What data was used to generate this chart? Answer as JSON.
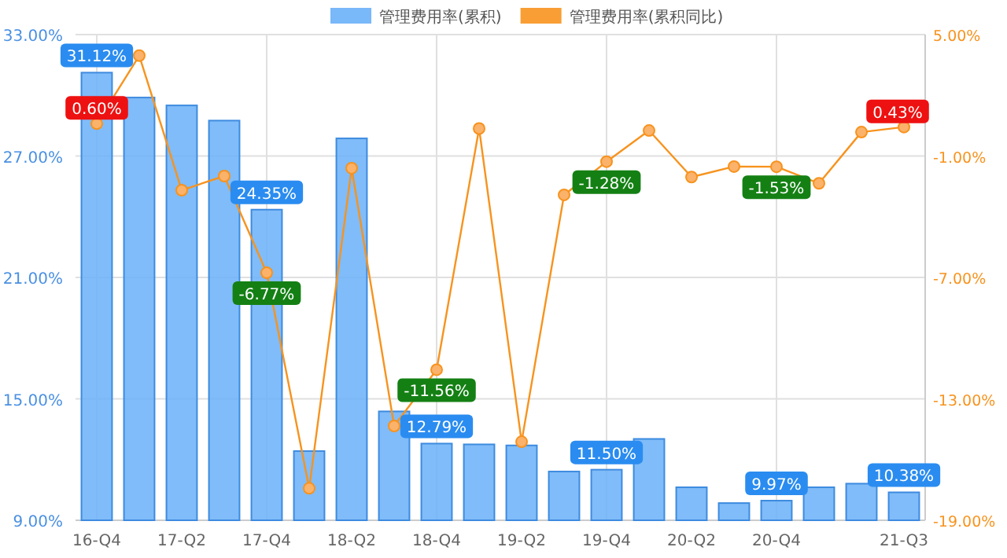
{
  "chart_data": {
    "type": "bar",
    "categories": [
      "16-Q4",
      null,
      "17-Q2",
      null,
      "17-Q4",
      null,
      "18-Q2",
      null,
      "18-Q4",
      null,
      "19-Q2",
      null,
      "19-Q4",
      null,
      "20-Q2",
      null,
      "20-Q4",
      null,
      null,
      "21-Q3"
    ],
    "series": [
      {
        "name": "管理费用率(累积)",
        "color": "#6ab0f8",
        "values": [
          31.12,
          29.89,
          29.5,
          28.75,
          24.35,
          12.42,
          27.87,
          14.38,
          12.79,
          12.75,
          12.7,
          11.41,
          11.5,
          13.02,
          10.63,
          9.85,
          9.97,
          10.63,
          10.81,
          10.38
        ],
        "value_labels": [
          "31.12%",
          null,
          null,
          null,
          "24.35%",
          null,
          null,
          null,
          "12.79%",
          null,
          null,
          null,
          "11.50%",
          null,
          null,
          null,
          "9.97%",
          null,
          null,
          "10.38%"
        ]
      },
      {
        "name": "管理费用率(累积同比)",
        "type": "line",
        "axis": "y2",
        "color": "#f7931e",
        "values": [
          0.6,
          3.96,
          -2.69,
          -1.99,
          -6.77,
          -17.42,
          -1.6,
          -14.34,
          -11.56,
          0.36,
          -15.12,
          -2.92,
          -1.28,
          0.26,
          -2.04,
          -1.52,
          -1.53,
          -2.35,
          0.18,
          0.43
        ],
        "value_labels": [
          "0.60%",
          null,
          null,
          null,
          "-6.77%",
          null,
          null,
          null,
          "-11.56%",
          null,
          null,
          null,
          "-1.28%",
          null,
          null,
          null,
          "-1.53%",
          null,
          null,
          "0.43%"
        ]
      }
    ],
    "ylim": [
      9,
      33
    ],
    "yticks": [
      {
        "value": 9,
        "label": "9.00%"
      },
      {
        "value": 15,
        "label": "15.00%"
      },
      {
        "value": 21,
        "label": "21.00%"
      },
      {
        "value": 27,
        "label": "27.00%"
      },
      {
        "value": 33,
        "label": "33.00%"
      }
    ],
    "y2lim": [
      -19,
      5
    ],
    "y2ticks": [
      {
        "value": -19,
        "label": "-19.00%"
      },
      {
        "value": -13,
        "label": "-13.00%"
      },
      {
        "value": -7,
        "label": "-7.00%"
      },
      {
        "value": -1,
        "label": "-1.00%"
      },
      {
        "value": 5,
        "label": "5.00%"
      }
    ],
    "grid": true,
    "legend": "top",
    "marker": "circle"
  }
}
